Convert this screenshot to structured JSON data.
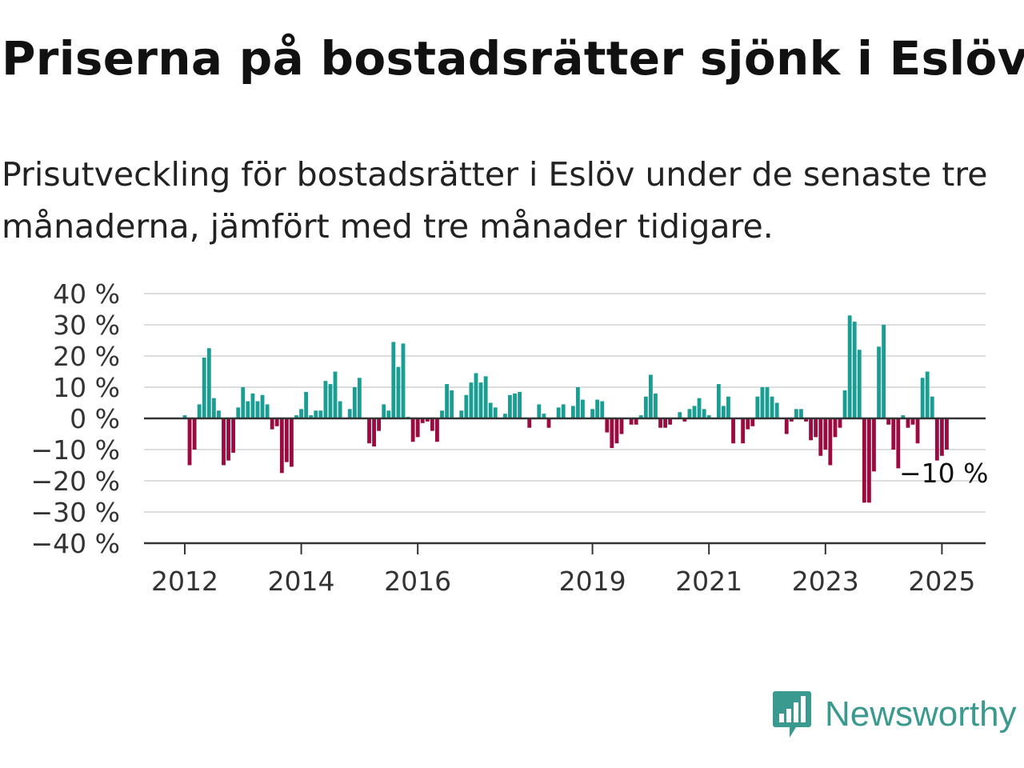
{
  "title": "Priserna på bostadsrätter sjönk i Eslöv",
  "subtitle": "Prisutveckling för bostadsrätter i Eslöv under de senaste tre månaderna, jämfört med tre månader tidigare.",
  "brand": {
    "name": "Newsworthy",
    "logo_icon": "newsworthy-bar-chart-pin-icon"
  },
  "colors": {
    "positive": "#1a9e94",
    "negative": "#9c0b3f",
    "grid": "#dddddd",
    "axis": "#333333",
    "brand": "#3a9a8f"
  },
  "chart_data": {
    "type": "bar",
    "title": "",
    "xlabel": "",
    "ylabel": "",
    "ylim": [
      -40,
      40
    ],
    "yticks": [
      40,
      30,
      20,
      10,
      0,
      -10,
      -20,
      -30,
      -40
    ],
    "ytick_labels": [
      "40 %",
      "30 %",
      "20 %",
      "10 %",
      "0 %",
      "−10 %",
      "−20 %",
      "−30 %",
      "−40 %"
    ],
    "xtick_labels": [
      "2012",
      "2014",
      "2016",
      "2019",
      "2021",
      "2023",
      "2025"
    ],
    "xtick_years": [
      2012,
      2014,
      2016,
      2019,
      2021,
      2023,
      2025
    ],
    "x_range": [
      2011.3,
      2025.75
    ],
    "grid": true,
    "end_label": "−10 %",
    "x": [
      2012.0,
      2012.083,
      2012.167,
      2012.25,
      2012.333,
      2012.417,
      2012.5,
      2012.583,
      2012.667,
      2012.75,
      2012.833,
      2012.917,
      2013.0,
      2013.083,
      2013.167,
      2013.25,
      2013.333,
      2013.417,
      2013.5,
      2013.583,
      2013.667,
      2013.75,
      2013.833,
      2013.917,
      2014.0,
      2014.083,
      2014.167,
      2014.25,
      2014.333,
      2014.417,
      2014.5,
      2014.583,
      2014.667,
      2014.75,
      2014.833,
      2014.917,
      2015.0,
      2015.083,
      2015.167,
      2015.25,
      2015.333,
      2015.417,
      2015.5,
      2015.583,
      2015.667,
      2015.75,
      2015.833,
      2015.917,
      2016.0,
      2016.083,
      2016.167,
      2016.25,
      2016.333,
      2016.417,
      2016.5,
      2016.583,
      2016.667,
      2016.75,
      2016.833,
      2016.917,
      2017.0,
      2017.083,
      2017.167,
      2017.25,
      2017.333,
      2017.417,
      2017.5,
      2017.583,
      2017.667,
      2017.75,
      2017.833,
      2017.917,
      2018.0,
      2018.083,
      2018.167,
      2018.25,
      2018.333,
      2018.417,
      2018.5,
      2018.583,
      2018.667,
      2018.75,
      2018.833,
      2018.917,
      2019.0,
      2019.083,
      2019.167,
      2019.25,
      2019.333,
      2019.417,
      2019.5,
      2019.583,
      2019.667,
      2019.75,
      2019.833,
      2019.917,
      2020.0,
      2020.083,
      2020.167,
      2020.25,
      2020.333,
      2020.417,
      2020.5,
      2020.583,
      2020.667,
      2020.75,
      2020.833,
      2020.917,
      2021.0,
      2021.083,
      2021.167,
      2021.25,
      2021.333,
      2021.417,
      2021.5,
      2021.583,
      2021.667,
      2021.75,
      2021.833,
      2021.917,
      2022.0,
      2022.083,
      2022.167,
      2022.25,
      2022.333,
      2022.417,
      2022.5,
      2022.583,
      2022.667,
      2022.75,
      2022.833,
      2022.917,
      2023.0,
      2023.083,
      2023.167,
      2023.25,
      2023.333,
      2023.417,
      2023.5,
      2023.583,
      2023.667,
      2023.75,
      2023.833,
      2023.917,
      2024.0,
      2024.083,
      2024.167,
      2024.25,
      2024.333,
      2024.417,
      2024.5,
      2024.583,
      2024.667,
      2024.75,
      2024.833,
      2024.917,
      2025.0,
      2025.083
    ],
    "series": [
      {
        "values": [
          1,
          -15,
          -10,
          4.5,
          19.5,
          22.5,
          6.5,
          2.5,
          -15,
          -13.5,
          -11,
          3.5,
          10,
          5.5,
          8,
          5.5,
          7.5,
          4.5,
          -3.5,
          -2.5,
          -17.5,
          -14,
          -15.5,
          1,
          3,
          8.5,
          1,
          2.5,
          2.5,
          12,
          11,
          15,
          5.5,
          0,
          3,
          10,
          13,
          0,
          -8,
          -9,
          -4,
          4.5,
          2.5,
          24.5,
          16.5,
          24,
          0.5,
          -7.5,
          -6,
          -1.5,
          -1,
          -4,
          -7.5,
          2.5,
          11,
          9,
          0,
          2.5,
          7.5,
          11.5,
          14.5,
          11.5,
          13.5,
          5,
          3.5,
          0,
          1.5,
          7.5,
          8,
          8.5,
          0,
          -3,
          0,
          4.5,
          1.5,
          -3,
          0,
          3.5,
          4.5,
          0,
          4,
          10,
          6,
          0,
          3,
          6,
          5.5,
          -4.5,
          -9.5,
          -8,
          -5,
          0,
          -2,
          -2,
          1,
          7,
          14,
          8,
          -3,
          -3,
          -2,
          0,
          2,
          -1,
          3,
          4,
          6.5,
          3,
          1,
          0,
          11,
          4,
          7,
          -8,
          0,
          -8,
          -3.5,
          -2.5,
          7,
          10,
          10,
          7,
          5,
          0,
          -5,
          -1,
          3,
          3,
          -1,
          -7,
          -6,
          -12,
          -10,
          -15,
          -6,
          -3,
          9,
          33,
          31,
          22,
          -27,
          -27,
          -17,
          23,
          30,
          -2,
          -10,
          -16,
          1,
          -3,
          -2,
          -8,
          13,
          15,
          7,
          -13.5,
          -12,
          -10
        ]
      }
    ]
  }
}
